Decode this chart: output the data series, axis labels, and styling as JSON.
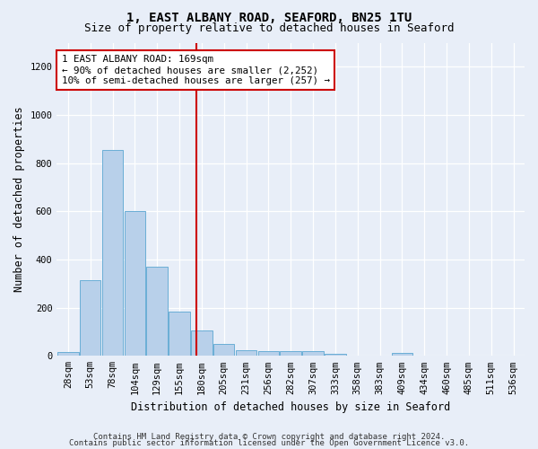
{
  "title": "1, EAST ALBANY ROAD, SEAFORD, BN25 1TU",
  "subtitle": "Size of property relative to detached houses in Seaford",
  "xlabel": "Distribution of detached houses by size in Seaford",
  "ylabel": "Number of detached properties",
  "bar_color": "#b8d0ea",
  "bar_edge_color": "#6aaed6",
  "categories": [
    "28sqm",
    "53sqm",
    "78sqm",
    "104sqm",
    "129sqm",
    "155sqm",
    "180sqm",
    "205sqm",
    "231sqm",
    "256sqm",
    "282sqm",
    "307sqm",
    "333sqm",
    "358sqm",
    "383sqm",
    "409sqm",
    "434sqm",
    "460sqm",
    "485sqm",
    "511sqm",
    "536sqm"
  ],
  "values": [
    15,
    315,
    855,
    600,
    370,
    185,
    105,
    48,
    22,
    18,
    20,
    20,
    10,
    0,
    0,
    12,
    0,
    0,
    0,
    0,
    0
  ],
  "vline_x": 5.75,
  "vline_color": "#cc0000",
  "ylim": [
    0,
    1300
  ],
  "yticks": [
    0,
    200,
    400,
    600,
    800,
    1000,
    1200
  ],
  "annotation_line1": "1 EAST ALBANY ROAD: 169sqm",
  "annotation_line2": "← 90% of detached houses are smaller (2,252)",
  "annotation_line3": "10% of semi-detached houses are larger (257) →",
  "annotation_box_color": "#ffffff",
  "annotation_border_color": "#cc0000",
  "footer_line1": "Contains HM Land Registry data © Crown copyright and database right 2024.",
  "footer_line2": "Contains public sector information licensed under the Open Government Licence v3.0.",
  "background_color": "#e8eef8",
  "grid_color": "#ffffff",
  "title_fontsize": 10,
  "subtitle_fontsize": 9,
  "axis_label_fontsize": 8.5,
  "tick_fontsize": 7.5,
  "footer_fontsize": 6.5,
  "annotation_fontsize": 7.8
}
